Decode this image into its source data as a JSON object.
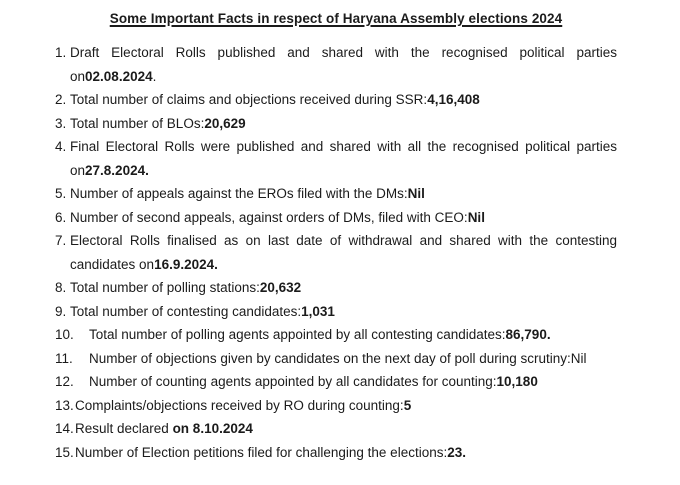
{
  "colors": {
    "background": "#ffffff",
    "text": "#1b1b1b"
  },
  "title": "Some Important Facts in respect of Haryana Assembly elections 2024",
  "facts": [
    {
      "number": "1.",
      "indent": "normal",
      "lines": [
        [
          {
            "text": "Draft Electoral Rolls published and shared with the recognised political parties",
            "bold": false
          }
        ],
        [
          {
            "text": "on",
            "bold": false
          },
          {
            "text": "02.08.2024",
            "bold": true
          },
          {
            "text": ".",
            "bold": false
          }
        ]
      ]
    },
    {
      "number": "2.",
      "indent": "normal",
      "lines": [
        [
          {
            "text": "Total number of claims and objections received during SSR:",
            "bold": false
          },
          {
            "text": "4,16,408",
            "bold": true
          }
        ]
      ]
    },
    {
      "number": "3.",
      "indent": "normal",
      "lines": [
        [
          {
            "text": "Total number of BLOs:",
            "bold": false
          },
          {
            "text": "20,629",
            "bold": true
          }
        ]
      ]
    },
    {
      "number": "4.",
      "indent": "normal",
      "lines": [
        [
          {
            "text": "Final Electoral Rolls were published and shared with all the recognised political parties",
            "bold": false
          }
        ],
        [
          {
            "text": "on",
            "bold": false
          },
          {
            "text": "27.8.2024.",
            "bold": true
          }
        ]
      ]
    },
    {
      "number": "5.",
      "indent": "normal",
      "lines": [
        [
          {
            "text": "Number of appeals against the EROs filed with the DMs:",
            "bold": false
          },
          {
            "text": "Nil",
            "bold": true
          }
        ]
      ]
    },
    {
      "number": "6.",
      "indent": "normal",
      "lines": [
        [
          {
            "text": "Number of second appeals, against orders of DMs, filed with CEO:",
            "bold": false
          },
          {
            "text": "Nil",
            "bold": true
          }
        ]
      ]
    },
    {
      "number": "7.",
      "indent": "normal",
      "lines": [
        [
          {
            "text": "Electoral Rolls finalised as on last date of withdrawal and shared with the contesting",
            "bold": false
          }
        ],
        [
          {
            "text": "candidates on",
            "bold": false
          },
          {
            "text": "16.9.2024.",
            "bold": true
          }
        ]
      ]
    },
    {
      "number": "8.",
      "indent": "normal",
      "lines": [
        [
          {
            "text": "Total number of polling stations:",
            "bold": false
          },
          {
            "text": "20,632",
            "bold": true
          }
        ]
      ]
    },
    {
      "number": "9.",
      "indent": "normal",
      "lines": [
        [
          {
            "text": "Total number of contesting candidates:",
            "bold": false
          },
          {
            "text": "1,031",
            "bold": true
          }
        ]
      ]
    },
    {
      "number": "10.",
      "indent": "wide",
      "lines": [
        [
          {
            "text": "Total number of polling agents appointed by all contesting candidates:",
            "bold": false
          },
          {
            "text": "86,790.",
            "bold": true
          }
        ]
      ]
    },
    {
      "number": "11.",
      "indent": "wide",
      "lines": [
        [
          {
            "text": "Number of objections given by candidates on the next day of poll during scrutiny:Nil",
            "bold": false
          }
        ]
      ]
    },
    {
      "number": "12.",
      "indent": "wide",
      "lines": [
        [
          {
            "text": "Number of counting agents appointed by all candidates for counting:",
            "bold": false
          },
          {
            "text": "10,180",
            "bold": true
          }
        ]
      ]
    },
    {
      "number": "13.",
      "indent": "tight",
      "lines": [
        [
          {
            "text": "Complaints/objections received by RO during counting:",
            "bold": false
          },
          {
            "text": "5",
            "bold": true
          }
        ]
      ]
    },
    {
      "number": "14.",
      "indent": "tight",
      "lines": [
        [
          {
            "text": "Result declared ",
            "bold": false
          },
          {
            "text": "on 8.10.2024",
            "bold": true
          }
        ]
      ]
    },
    {
      "number": "15.",
      "indent": "tight",
      "lines": [
        [
          {
            "text": "Number of Election petitions filed for challenging the elections:",
            "bold": false
          },
          {
            "text": "23.",
            "bold": true
          }
        ]
      ]
    }
  ]
}
